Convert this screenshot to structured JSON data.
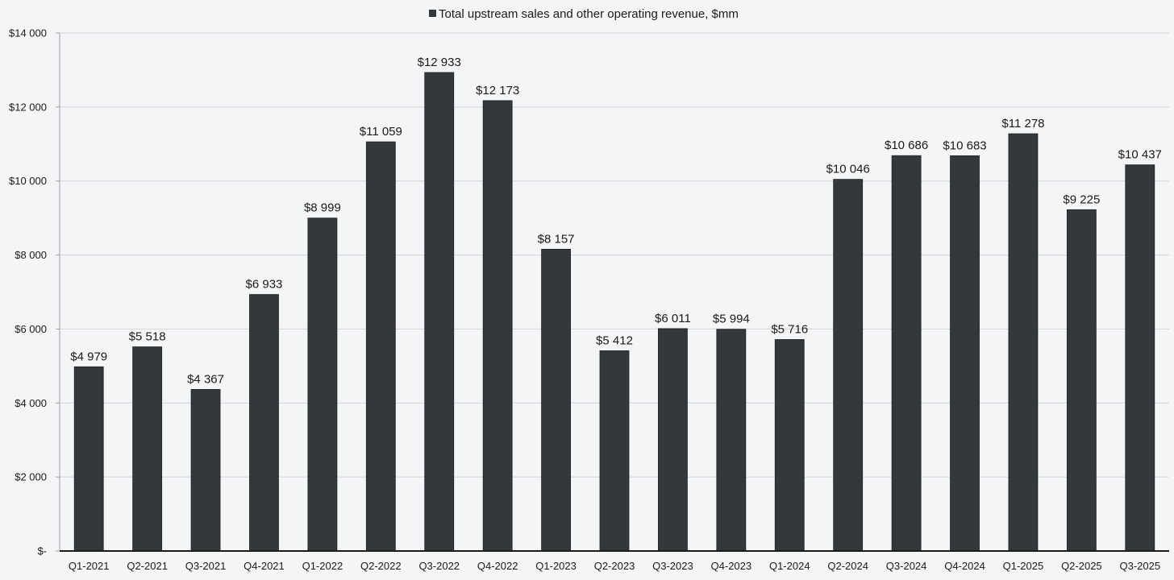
{
  "chart_data": {
    "type": "bar",
    "legend_position": "top-center",
    "grid": true,
    "ylim": [
      0,
      14000
    ],
    "yticks": [
      0,
      2000,
      4000,
      6000,
      8000,
      10000,
      12000,
      14000
    ],
    "ytick_labels": [
      "$-",
      "$2 000",
      "$4 000",
      "$6 000",
      "$8 000",
      "$10 000",
      "$12 000",
      "$14 000"
    ],
    "categories": [
      "Q1-2021",
      "Q2-2021",
      "Q3-2021",
      "Q4-2021",
      "Q1-2022",
      "Q2-2022",
      "Q3-2022",
      "Q4-2022",
      "Q1-2023",
      "Q2-2023",
      "Q3-2023",
      "Q4-2023",
      "Q1-2024",
      "Q2-2024",
      "Q3-2024",
      "Q4-2024",
      "Q1-2025",
      "Q2-2025",
      "Q3-2025"
    ],
    "series": [
      {
        "name": "Total upstream sales and other operating revenue, $mm",
        "color": "#33383b",
        "values": [
          4979,
          5518,
          4367,
          6933,
          8999,
          11059,
          12933,
          12173,
          8157,
          5412,
          6011,
          5994,
          5716,
          10046,
          10686,
          10683,
          11278,
          9225,
          10437
        ],
        "data_labels": [
          "$4 979",
          "$5 518",
          "$4 367",
          "$6 933",
          "$8 999",
          "$11 059",
          "$12 933",
          "$12 173",
          "$8 157",
          "$5 412",
          "$6 011",
          "$5 994",
          "$5 716",
          "$10 046",
          "$10 686",
          "$10 683",
          "$11 278",
          "$9 225",
          "$10 437"
        ]
      }
    ]
  }
}
